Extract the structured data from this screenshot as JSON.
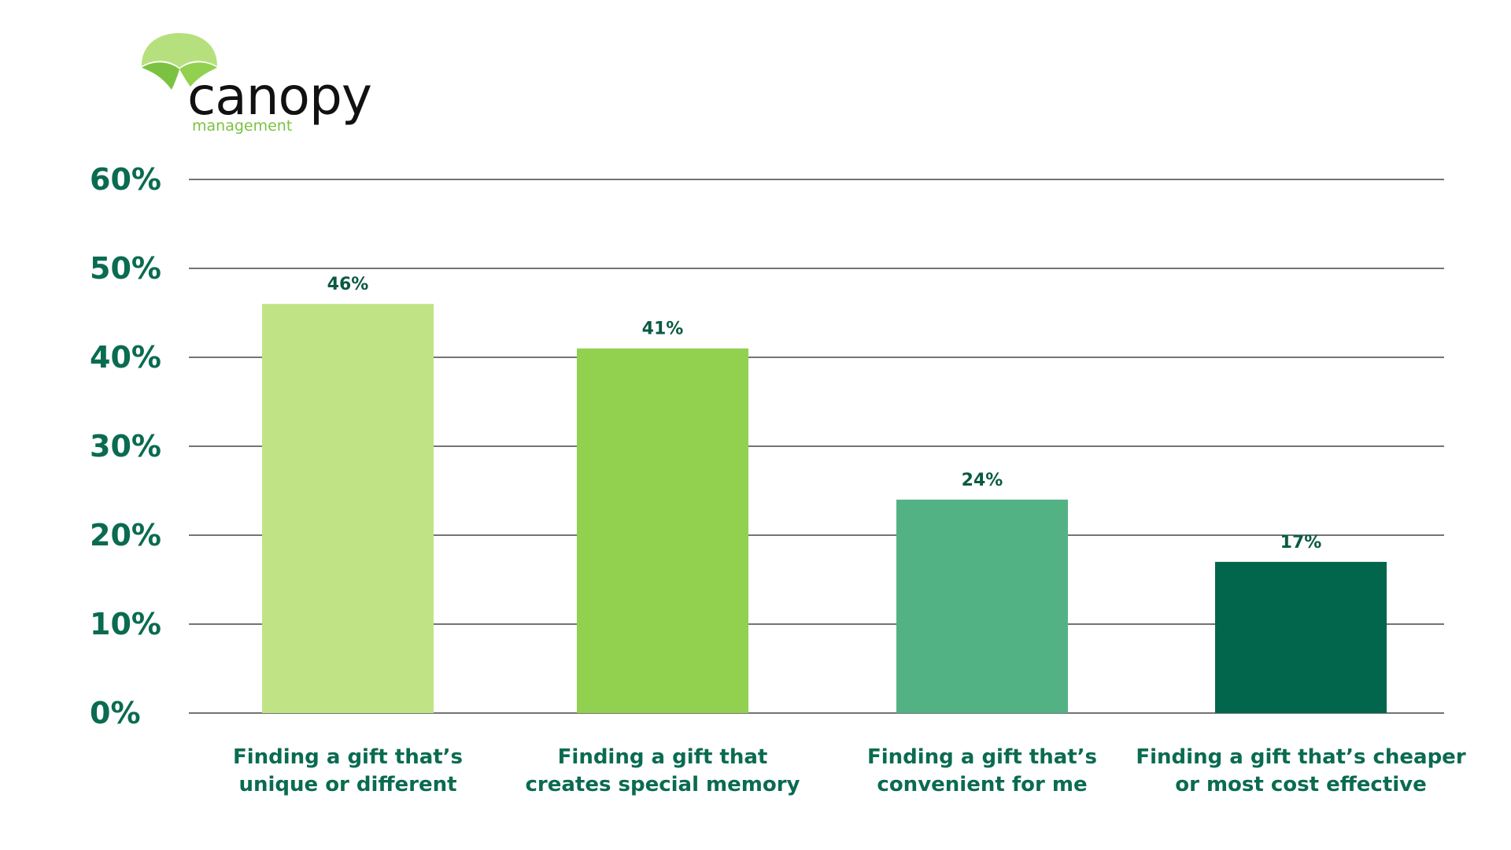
{
  "logo": {
    "name": "canopy",
    "tagline": "management",
    "leaf_color_light": "#b6e07e",
    "leaf_color_dark": "#7cc242"
  },
  "colors": {
    "grid": "#222222",
    "tick_text": "#0a6b50",
    "label_text": "#0a5a43"
  },
  "chart_data": {
    "type": "bar",
    "categories": [
      [
        "Finding a gift that’s",
        "unique or different"
      ],
      [
        "Finding a gift that",
        "creates special memory"
      ],
      [
        "Finding a gift that’s",
        "convenient for me"
      ],
      [
        "Finding a gift that’s cheaper",
        "or most cost effective"
      ]
    ],
    "values": [
      46,
      41,
      24,
      17
    ],
    "data_labels": [
      "46%",
      "41%",
      "24%",
      "17%"
    ],
    "bar_colors": [
      "#c0e386",
      "#92d14f",
      "#53b283",
      "#02664d"
    ],
    "title": "",
    "xlabel": "",
    "ylabel": "",
    "ylim": [
      0,
      60
    ],
    "yticks": [
      0,
      10,
      20,
      30,
      40,
      50,
      60
    ],
    "ytick_labels": [
      "0%",
      "10%",
      "20%",
      "30%",
      "40%",
      "50%",
      "60%"
    ],
    "grid": true,
    "legend": false
  }
}
